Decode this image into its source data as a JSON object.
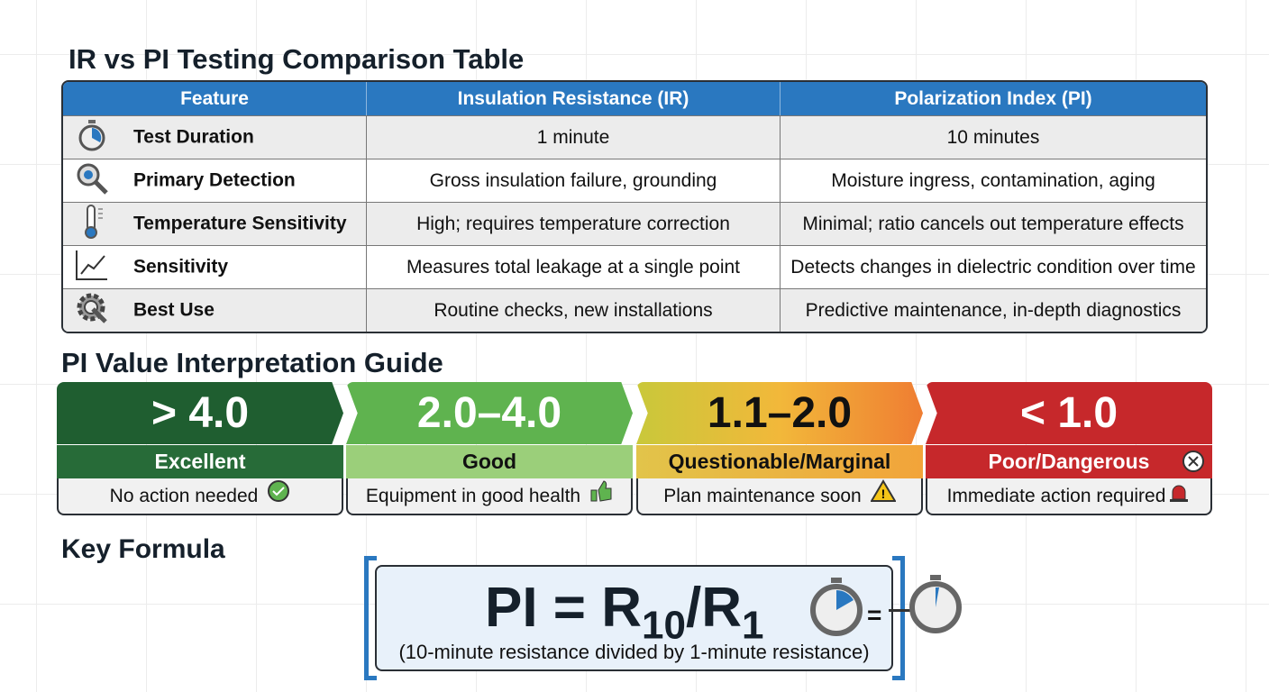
{
  "titles": {
    "table": "IR vs PI Testing Comparison Table",
    "guide": "PI Value Interpretation Guide",
    "formula": "Key Formula"
  },
  "table": {
    "headers": [
      "Feature",
      "Insulation Resistance (IR)",
      "Polarization Index (PI)"
    ],
    "rows": [
      {
        "icon": "stopwatch-icon",
        "feature": "Test Duration",
        "ir": "1 minute",
        "pi": "10 minutes"
      },
      {
        "icon": "magnifier-icon",
        "feature": "Primary Detection",
        "ir": "Gross insulation failure, grounding",
        "pi": "Moisture ingress, contamination, aging"
      },
      {
        "icon": "thermometer-icon",
        "feature": "Temperature Sensitivity",
        "ir": "High; requires temperature correction",
        "pi": "Minimal; ratio cancels out temperature effects"
      },
      {
        "icon": "line-chart-icon",
        "feature": "Sensitivity",
        "ir": "Measures total leakage at a single point",
        "pi": "Detects changes in dielectric condition over time"
      },
      {
        "icon": "gear-wrench-icon",
        "feature": "Best Use",
        "ir": "Routine checks, new installations",
        "pi": "Predictive maintenance, in-depth diagnostics"
      }
    ]
  },
  "guide": [
    {
      "range": "> 4.0",
      "label": "Excellent",
      "desc": "No action needed",
      "icon": "check-circle-icon",
      "color": "#1f5e30",
      "label_color": "#276b38"
    },
    {
      "range": "2.0–4.0",
      "label": "Good",
      "desc": "Equipment in good health",
      "icon": "thumbs-up-icon",
      "color": "#5fb34f",
      "label_color": "#9bcf7a"
    },
    {
      "range": "1.1–2.0",
      "label": "Questionable/Marginal",
      "desc": "Plan maintenance soon",
      "icon": "warning-icon",
      "color": "#f0a43a",
      "label_color": "#f2b04a"
    },
    {
      "range": "< 1.0",
      "label": "Poor/Dangerous",
      "desc": "Immediate action required",
      "icon": "alarm-light-icon",
      "color": "#c6282b",
      "label_color": "#c6282b"
    }
  ],
  "formula": {
    "lhs": "PI = R",
    "sub1": "10",
    "mid": "/R",
    "sub2": "1",
    "note": "(10-minute resistance divided by 1-minute resistance)",
    "eq": "="
  }
}
